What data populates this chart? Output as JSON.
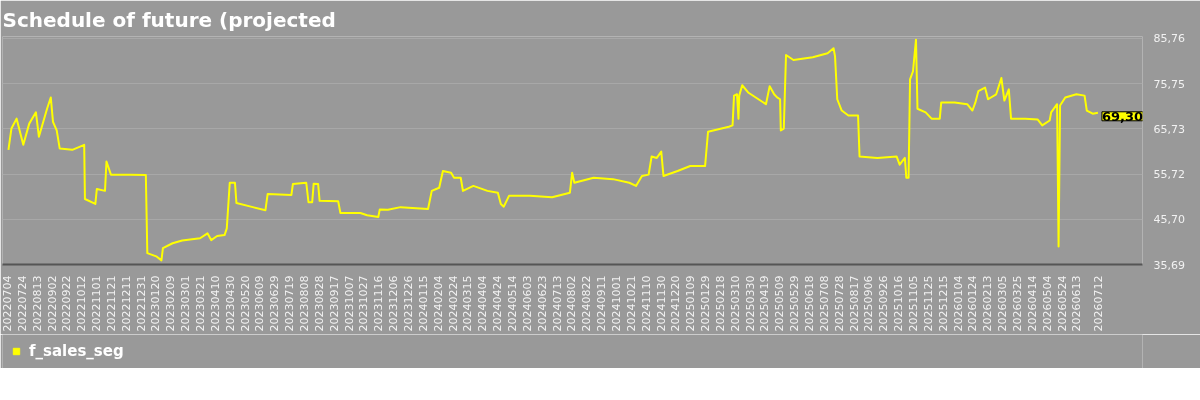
{
  "chart_data": {
    "type": "line",
    "title": "Schedule of future (projected",
    "x": [
      "2022-07-06",
      "2022-07-10",
      "2022-07-17",
      "2022-07-26",
      "2022-08-03",
      "2022-08-12",
      "2022-08-16",
      "2022-08-27",
      "2022-09-01",
      "2022-09-04",
      "2022-09-09",
      "2022-09-13",
      "2022-09-30",
      "2022-10-16",
      "2022-10-17",
      "2022-10-31",
      "2022-11-02",
      "2022-11-13",
      "2022-11-15",
      "2022-11-21",
      "2022-12-17",
      "2023-01-07",
      "2023-01-09",
      "2023-01-21",
      "2023-01-28",
      "2023-01-30",
      "2023-02-12",
      "2023-02-25",
      "2023-03-21",
      "2023-03-31",
      "2023-04-05",
      "2023-04-13",
      "2023-04-23",
      "2023-04-26",
      "2023-04-30",
      "2023-05-07",
      "2023-05-09",
      "2023-05-31",
      "2023-06-17",
      "2023-06-20",
      "2023-07-22",
      "2023-07-24",
      "2023-08-11",
      "2023-08-14",
      "2023-08-19",
      "2023-08-21",
      "2023-08-27",
      "2023-08-29",
      "2023-09-23",
      "2023-09-26",
      "2023-10-23",
      "2023-11-01",
      "2023-11-16",
      "2023-11-18",
      "2023-11-29",
      "2023-12-16",
      "2024-01-22",
      "2024-01-27",
      "2024-02-06",
      "2024-02-11",
      "2024-02-22",
      "2024-02-26",
      "2024-03-06",
      "2024-03-09",
      "2024-03-23",
      "2024-04-11",
      "2024-04-25",
      "2024-04-29",
      "2024-05-03",
      "2024-05-10",
      "2024-06-07",
      "2024-07-07",
      "2024-07-31",
      "2024-08-03",
      "2024-08-06",
      "2024-09-01",
      "2024-09-27",
      "2024-10-19",
      "2024-10-28",
      "2024-11-05",
      "2024-11-14",
      "2024-11-18",
      "2024-11-25",
      "2024-12-01",
      "2024-12-04",
      "2024-12-23",
      "2025-01-09",
      "2025-01-29",
      "2025-02-02",
      "2025-03-02",
      "2025-03-07",
      "2025-03-09",
      "2025-03-13",
      "2025-03-15",
      "2025-03-16",
      "2025-03-20",
      "2025-03-28",
      "2025-04-21",
      "2025-04-26",
      "2025-05-02",
      "2025-05-06",
      "2025-05-10",
      "2025-05-11",
      "2025-05-15",
      "2025-05-18",
      "2025-05-28",
      "2025-06-23",
      "2025-07-13",
      "2025-07-21",
      "2025-07-23",
      "2025-07-26",
      "2025-08-01",
      "2025-08-10",
      "2025-08-23",
      "2025-08-25",
      "2025-09-18",
      "2025-10-14",
      "2025-10-18",
      "2025-10-25",
      "2025-10-27",
      "2025-10-30",
      "2025-11-01",
      "2025-11-05",
      "2025-11-09",
      "2025-11-11",
      "2025-11-22",
      "2025-11-30",
      "2025-12-11",
      "2025-12-13",
      "2025-12-31",
      "2026-01-17",
      "2026-01-24",
      "2026-01-28",
      "2026-02-01",
      "2026-02-10",
      "2026-02-14",
      "2026-02-25",
      "2026-03-04",
      "2026-03-08",
      "2026-03-14",
      "2026-03-17",
      "2026-04-05",
      "2026-04-22",
      "2026-04-28",
      "2026-05-08",
      "2026-05-10",
      "2026-05-18",
      "2026-05-20",
      "2026-05-22",
      "2026-05-29",
      "2026-06-13",
      "2026-06-24",
      "2026-06-27",
      "2026-07-05",
      "2026-07-12"
    ],
    "series": [
      {
        "name": "f_sales_seg",
        "color": "#ffff00",
        "values": [
          61.1,
          65.8,
          68.0,
          62.2,
          66.9,
          69.4,
          64.0,
          70.2,
          72.7,
          67.3,
          65.4,
          61.4,
          61.1,
          62.2,
          50.2,
          49.1,
          52.4,
          52.0,
          58.5,
          55.6,
          55.6,
          55.5,
          38.2,
          37.5,
          36.6,
          39.3,
          40.4,
          41.0,
          41.5,
          42.6,
          41.1,
          42.0,
          42.2,
          43.7,
          53.8,
          53.8,
          49.3,
          48.4,
          47.7,
          51.3,
          51.1,
          53.5,
          53.8,
          49.5,
          49.5,
          53.6,
          53.5,
          49.8,
          49.7,
          47.1,
          47.1,
          46.6,
          46.2,
          47.9,
          47.8,
          48.4,
          48.0,
          52.0,
          52.7,
          56.4,
          56.0,
          54.9,
          54.9,
          52.0,
          53.1,
          52.0,
          51.6,
          49.1,
          48.5,
          50.9,
          50.9,
          50.6,
          51.6,
          56.0,
          53.8,
          54.9,
          54.6,
          53.8,
          53.1,
          55.3,
          55.6,
          59.6,
          59.3,
          60.7,
          55.3,
          56.4,
          57.5,
          57.5,
          65.1,
          66.2,
          66.5,
          73.1,
          73.4,
          68.0,
          73.1,
          75.4,
          73.8,
          71.2,
          75.2,
          73.4,
          72.7,
          72.3,
          65.4,
          65.8,
          82.1,
          81.0,
          81.6,
          82.5,
          83.6,
          81.8,
          72.3,
          69.8,
          68.7,
          68.7,
          59.6,
          59.3,
          59.6,
          57.8,
          59.3,
          54.9,
          54.9,
          76.7,
          78.5,
          85.5,
          70.2,
          69.4,
          68.0,
          68.0,
          71.6,
          71.6,
          71.2,
          69.8,
          71.6,
          74.1,
          74.9,
          72.3,
          73.4,
          77.0,
          72.0,
          74.5,
          68.0,
          68.0,
          67.8,
          66.5,
          67.6,
          69.4,
          71.2,
          39.7,
          70.9,
          72.7,
          73.4,
          73.1,
          69.8,
          69.1,
          69.3
        ]
      }
    ],
    "xlim": [
      "2022-06-28",
      "2026-09-10"
    ],
    "ylim": [
      35.69,
      86.2
    ],
    "yticks": [
      {
        "value": 35.69,
        "label": "35,69"
      },
      {
        "value": 45.7,
        "label": "45,70"
      },
      {
        "value": 55.72,
        "label": "55,72"
      },
      {
        "value": 65.73,
        "label": "65,73"
      },
      {
        "value": 75.75,
        "label": "75,75"
      },
      {
        "value": 85.76,
        "label": "85,76"
      }
    ],
    "xticks": [
      {
        "value": "2022-07-04",
        "label": "20220704"
      },
      {
        "value": "2022-07-24",
        "label": "20220724"
      },
      {
        "value": "2022-08-13",
        "label": "20220813"
      },
      {
        "value": "2022-09-02",
        "label": "20220902"
      },
      {
        "value": "2022-09-22",
        "label": "20220922"
      },
      {
        "value": "2022-10-12",
        "label": "20221012"
      },
      {
        "value": "2022-11-01",
        "label": "20221101"
      },
      {
        "value": "2022-11-21",
        "label": "20221121"
      },
      {
        "value": "2022-12-11",
        "label": "20221211"
      },
      {
        "value": "2022-12-31",
        "label": "20221231"
      },
      {
        "value": "2023-01-20",
        "label": "20230120"
      },
      {
        "value": "2023-02-09",
        "label": "20230209"
      },
      {
        "value": "2023-03-01",
        "label": "20230301"
      },
      {
        "value": "2023-03-21",
        "label": "20230321"
      },
      {
        "value": "2023-04-10",
        "label": "20230410"
      },
      {
        "value": "2023-04-30",
        "label": "20230430"
      },
      {
        "value": "2023-05-20",
        "label": "20230520"
      },
      {
        "value": "2023-06-09",
        "label": "20230609"
      },
      {
        "value": "2023-06-29",
        "label": "20230629"
      },
      {
        "value": "2023-07-19",
        "label": "20230719"
      },
      {
        "value": "2023-08-08",
        "label": "20230808"
      },
      {
        "value": "2023-08-28",
        "label": "20230828"
      },
      {
        "value": "2023-09-17",
        "label": "20230917"
      },
      {
        "value": "2023-10-07",
        "label": "20231007"
      },
      {
        "value": "2023-10-27",
        "label": "20231027"
      },
      {
        "value": "2023-11-16",
        "label": "20231116"
      },
      {
        "value": "2023-12-06",
        "label": "20231206"
      },
      {
        "value": "2023-12-26",
        "label": "20231226"
      },
      {
        "value": "2024-01-15",
        "label": "20240115"
      },
      {
        "value": "2024-02-04",
        "label": "20240204"
      },
      {
        "value": "2024-02-24",
        "label": "20240224"
      },
      {
        "value": "2024-03-15",
        "label": "20240315"
      },
      {
        "value": "2024-04-04",
        "label": "20240404"
      },
      {
        "value": "2024-04-24",
        "label": "20240424"
      },
      {
        "value": "2024-05-14",
        "label": "20240514"
      },
      {
        "value": "2024-06-03",
        "label": "20240603"
      },
      {
        "value": "2024-06-23",
        "label": "20240623"
      },
      {
        "value": "2024-07-13",
        "label": "20240713"
      },
      {
        "value": "2024-08-02",
        "label": "20240802"
      },
      {
        "value": "2024-08-22",
        "label": "20240822"
      },
      {
        "value": "2024-09-11",
        "label": "20240911"
      },
      {
        "value": "2024-10-01",
        "label": "20241001"
      },
      {
        "value": "2024-10-21",
        "label": "20241021"
      },
      {
        "value": "2024-11-10",
        "label": "20241110"
      },
      {
        "value": "2024-11-30",
        "label": "20241130"
      },
      {
        "value": "2024-12-20",
        "label": "20241220"
      },
      {
        "value": "2025-01-09",
        "label": "20250109"
      },
      {
        "value": "2025-01-29",
        "label": "20250129"
      },
      {
        "value": "2025-02-18",
        "label": "20250218"
      },
      {
        "value": "2025-03-10",
        "label": "20250310"
      },
      {
        "value": "2025-03-30",
        "label": "20250330"
      },
      {
        "value": "2025-04-19",
        "label": "20250419"
      },
      {
        "value": "2025-05-09",
        "label": "20250509"
      },
      {
        "value": "2025-05-29",
        "label": "20250529"
      },
      {
        "value": "2025-06-18",
        "label": "20250618"
      },
      {
        "value": "2025-07-08",
        "label": "20250708"
      },
      {
        "value": "2025-07-28",
        "label": "20250728"
      },
      {
        "value": "2025-08-17",
        "label": "20250817"
      },
      {
        "value": "2025-09-06",
        "label": "20250906"
      },
      {
        "value": "2025-09-26",
        "label": "20250926"
      },
      {
        "value": "2025-10-16",
        "label": "20251016"
      },
      {
        "value": "2025-11-05",
        "label": "20251105"
      },
      {
        "value": "2025-11-25",
        "label": "20251125"
      },
      {
        "value": "2025-12-15",
        "label": "20251215"
      },
      {
        "value": "2026-01-04",
        "label": "20260104"
      },
      {
        "value": "2026-01-24",
        "label": "20260124"
      },
      {
        "value": "2026-02-13",
        "label": "20260213"
      },
      {
        "value": "2026-03-05",
        "label": "20260305"
      },
      {
        "value": "2026-03-25",
        "label": "20260325"
      },
      {
        "value": "2026-04-14",
        "label": "20260414"
      },
      {
        "value": "2026-05-04",
        "label": "20260504"
      },
      {
        "value": "2026-05-24",
        "label": "20260524"
      },
      {
        "value": "2026-06-13",
        "label": "20260613"
      },
      {
        "value": "2026-07-12",
        "label": "20260712"
      }
    ],
    "annotations": [
      {
        "text": "69,30",
        "x": "2026-07-12",
        "y": 69.3
      }
    ],
    "grid": "y",
    "legend": "bottom left"
  }
}
